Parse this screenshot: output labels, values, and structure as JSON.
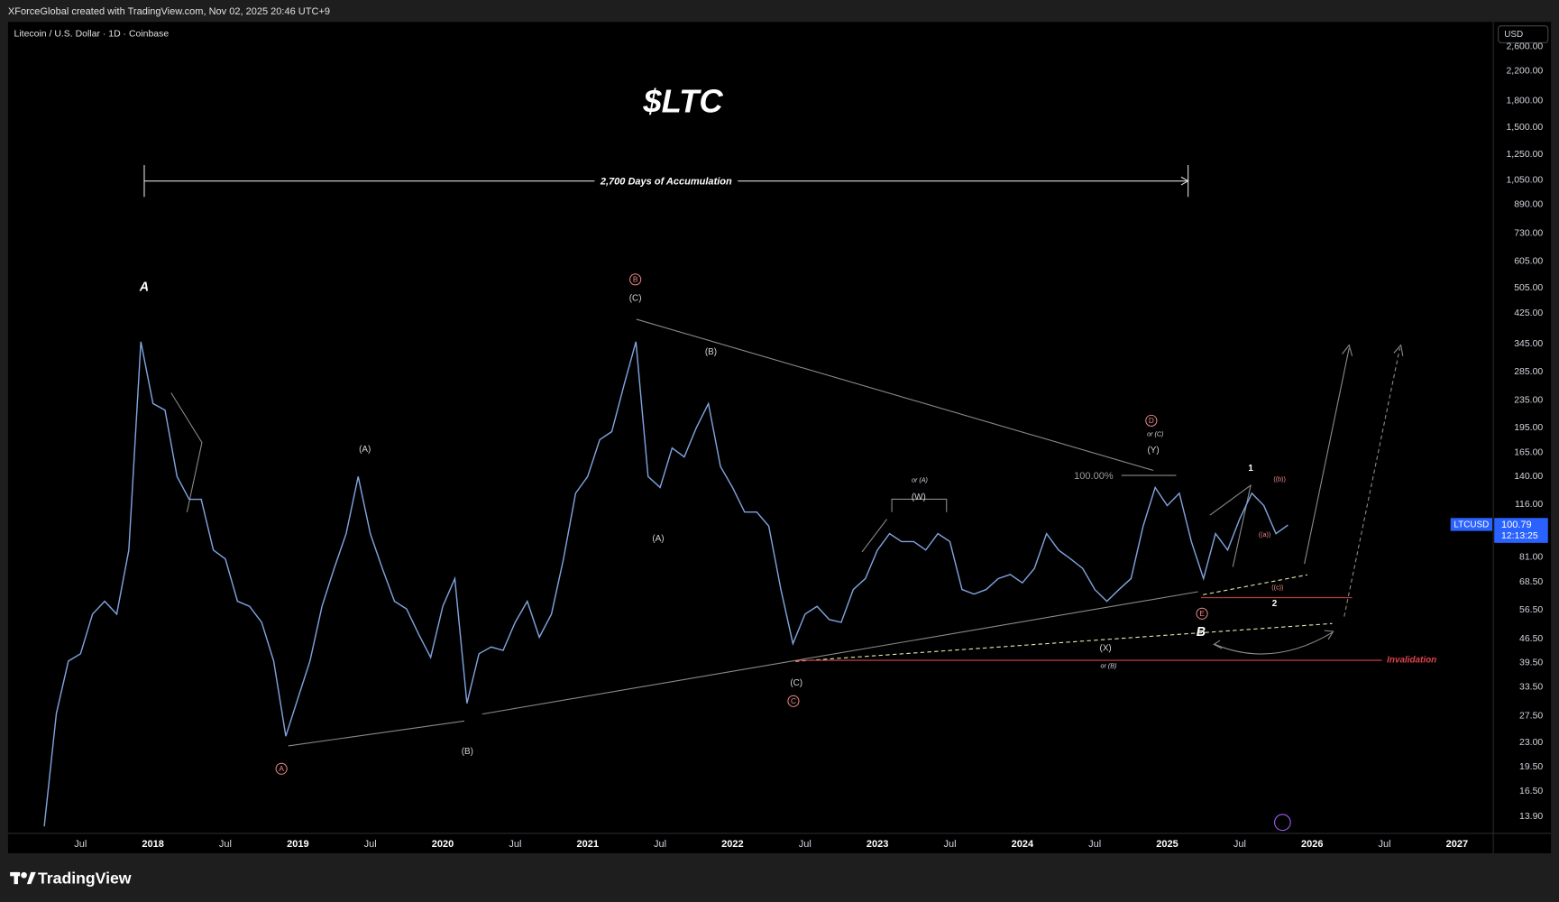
{
  "header": {
    "credit": "XForceGlobal created with TradingView.com, Nov 02, 2025 20:46 UTC+9"
  },
  "footer": {
    "brand": "TradingView"
  },
  "chart_data": {
    "type": "line",
    "title": "$LTC",
    "symbol_info": "Litecoin / U.S. Dollar · 1D · Coinbase",
    "currency": "USD",
    "measure_label": "2,700 Days of Accumulation",
    "symbol": "LTCUSD",
    "last_price": 100.79,
    "countdown": "12:13:25",
    "log_scale": true,
    "grid": false,
    "x": [
      "2017-04",
      "2017-05",
      "2017-06",
      "2017-07",
      "2017-08",
      "2017-09",
      "2017-10",
      "2017-11",
      "2017-12",
      "2018-01",
      "2018-02",
      "2018-03",
      "2018-04",
      "2018-05",
      "2018-06",
      "2018-07",
      "2018-08",
      "2018-09",
      "2018-10",
      "2018-11",
      "2018-12",
      "2019-01",
      "2019-02",
      "2019-03",
      "2019-04",
      "2019-05",
      "2019-06",
      "2019-07",
      "2019-08",
      "2019-09",
      "2019-10",
      "2019-11",
      "2019-12",
      "2020-01",
      "2020-02",
      "2020-03",
      "2020-04",
      "2020-05",
      "2020-06",
      "2020-07",
      "2020-08",
      "2020-09",
      "2020-10",
      "2020-11",
      "2020-12",
      "2021-01",
      "2021-02",
      "2021-03",
      "2021-04",
      "2021-05",
      "2021-06",
      "2021-07",
      "2021-08",
      "2021-09",
      "2021-10",
      "2021-11",
      "2021-12",
      "2022-01",
      "2022-02",
      "2022-03",
      "2022-04",
      "2022-05",
      "2022-06",
      "2022-07",
      "2022-08",
      "2022-09",
      "2022-10",
      "2022-11",
      "2022-12",
      "2023-01",
      "2023-02",
      "2023-03",
      "2023-04",
      "2023-05",
      "2023-06",
      "2023-07",
      "2023-08",
      "2023-09",
      "2023-10",
      "2023-11",
      "2023-12",
      "2024-01",
      "2024-02",
      "2024-03",
      "2024-04",
      "2024-05",
      "2024-06",
      "2024-07",
      "2024-08",
      "2024-09",
      "2024-10",
      "2024-11",
      "2024-12",
      "2025-01",
      "2025-02",
      "2025-03",
      "2025-04",
      "2025-05",
      "2025-06",
      "2025-07",
      "2025-08",
      "2025-09",
      "2025-10",
      "2025-11"
    ],
    "series": [
      {
        "name": "LTCUSD",
        "color": "#7fa3dc",
        "values": [
          13,
          28,
          40,
          42,
          55,
          60,
          55,
          85,
          350,
          230,
          220,
          140,
          120,
          120,
          85,
          80,
          60,
          58,
          52,
          40,
          24,
          31,
          40,
          58,
          75,
          95,
          140,
          95,
          75,
          60,
          57,
          48,
          41,
          58,
          70,
          30,
          42,
          44,
          43,
          52,
          60,
          47,
          55,
          80,
          125,
          140,
          180,
          190,
          260,
          350,
          140,
          130,
          170,
          160,
          195,
          230,
          150,
          130,
          110,
          110,
          100,
          65,
          45,
          55,
          58,
          53,
          52,
          65,
          70,
          85,
          95,
          90,
          90,
          85,
          95,
          90,
          65,
          63,
          65,
          70,
          72,
          68,
          75,
          95,
          85,
          80,
          75,
          65,
          60,
          65,
          70,
          100,
          130,
          115,
          125,
          90,
          70,
          95,
          85,
          105,
          125,
          115,
          95,
          100.79
        ]
      }
    ],
    "xlim": [
      "2017-01",
      "2027-04"
    ],
    "xticks": [
      {
        "value": "2017-07",
        "label": "Jul"
      },
      {
        "value": "2018-01",
        "label": "2018"
      },
      {
        "value": "2018-07",
        "label": "Jul"
      },
      {
        "value": "2019-01",
        "label": "2019"
      },
      {
        "value": "2019-07",
        "label": "Jul"
      },
      {
        "value": "2020-01",
        "label": "2020"
      },
      {
        "value": "2020-07",
        "label": "Jul"
      },
      {
        "value": "2021-01",
        "label": "2021"
      },
      {
        "value": "2021-07",
        "label": "Jul"
      },
      {
        "value": "2022-01",
        "label": "2022"
      },
      {
        "value": "2022-07",
        "label": "Jul"
      },
      {
        "value": "2023-01",
        "label": "2023"
      },
      {
        "value": "2023-07",
        "label": "Jul"
      },
      {
        "value": "2024-01",
        "label": "2024"
      },
      {
        "value": "2024-07",
        "label": "Jul"
      },
      {
        "value": "2025-01",
        "label": "2025"
      },
      {
        "value": "2025-07",
        "label": "Jul"
      },
      {
        "value": "2026-01",
        "label": "2026"
      },
      {
        "value": "2026-07",
        "label": "Jul"
      },
      {
        "value": "2027-01",
        "label": "2027"
      }
    ],
    "ylim": [
      12.4,
      3075
    ],
    "yticks": [
      {
        "value": 2600,
        "label": "2,600.00"
      },
      {
        "value": 2200,
        "label": "2,200.00"
      },
      {
        "value": 1800,
        "label": "1,800.00"
      },
      {
        "value": 1500,
        "label": "1,500.00"
      },
      {
        "value": 1250,
        "label": "1,250.00"
      },
      {
        "value": 1050,
        "label": "1,050.00"
      },
      {
        "value": 890,
        "label": "890.00"
      },
      {
        "value": 730,
        "label": "730.00"
      },
      {
        "value": 605,
        "label": "605.00"
      },
      {
        "value": 505,
        "label": "505.00"
      },
      {
        "value": 425,
        "label": "425.00"
      },
      {
        "value": 345,
        "label": "345.00"
      },
      {
        "value": 285,
        "label": "285.00"
      },
      {
        "value": 235,
        "label": "235.00"
      },
      {
        "value": 195,
        "label": "195.00"
      },
      {
        "value": 165,
        "label": "165.00"
      },
      {
        "value": 140,
        "label": "140.00"
      },
      {
        "value": 116,
        "label": "116.00"
      },
      {
        "value": 81,
        "label": "81.00"
      },
      {
        "value": 68.5,
        "label": "68.50"
      },
      {
        "value": 56.5,
        "label": "56.50"
      },
      {
        "value": 46.5,
        "label": "46.50"
      },
      {
        "value": 39.5,
        "label": "39.50"
      },
      {
        "value": 33.5,
        "label": "33.50"
      },
      {
        "value": 27.5,
        "label": "27.50"
      },
      {
        "value": 23,
        "label": "23.00"
      },
      {
        "value": 19.5,
        "label": "19.50"
      },
      {
        "value": 16.5,
        "label": "16.50"
      },
      {
        "value": 13.9,
        "label": "13.90"
      }
    ],
    "annotations": [
      "A",
      "A",
      "(A)",
      "(B)",
      "B",
      "(C)",
      "(A)",
      "(B)",
      "(C)",
      "C",
      "or (A)",
      "(W)",
      "(X)",
      "or (B)",
      "D",
      "or (C)",
      "(Y)",
      "100.00%",
      "1",
      "((b))",
      "((a))",
      "((c))",
      "2",
      "E",
      "B",
      "Invalidation"
    ]
  }
}
